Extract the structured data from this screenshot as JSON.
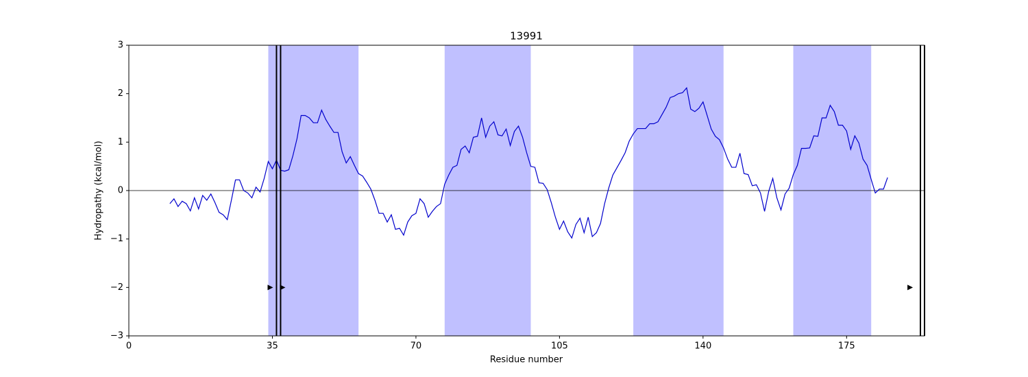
{
  "chart_data": {
    "type": "line",
    "title": "13991",
    "x_label": "Residue number",
    "y_label": "Hydropathy (kcal/mol)",
    "color": "#0000cc",
    "span_color": "#c0c0ff",
    "x": [
      10,
      11,
      12,
      13,
      14,
      15,
      16,
      17,
      18,
      19,
      20,
      21,
      22,
      23,
      24,
      25,
      26,
      27,
      28,
      29,
      30,
      31,
      32,
      33,
      34,
      35,
      36,
      37,
      38,
      39,
      40,
      41,
      42,
      43,
      44,
      45,
      46,
      47,
      48,
      49,
      50,
      51,
      52,
      53,
      54,
      55,
      56,
      57,
      58,
      59,
      60,
      61,
      62,
      63,
      64,
      65,
      66,
      67,
      68,
      69,
      70,
      71,
      72,
      73,
      74,
      75,
      76,
      77,
      78,
      79,
      80,
      81,
      82,
      83,
      84,
      85,
      86,
      87,
      88,
      89,
      90,
      91,
      92,
      93,
      94,
      95,
      96,
      97,
      98,
      99,
      100,
      101,
      102,
      103,
      104,
      105,
      106,
      107,
      108,
      109,
      110,
      111,
      112,
      113,
      114,
      115,
      116,
      117,
      118,
      119,
      120,
      121,
      122,
      123,
      124,
      125,
      126,
      127,
      128,
      129,
      130,
      131,
      132,
      133,
      134,
      135,
      136,
      137,
      138,
      139,
      140,
      141,
      142,
      143,
      144,
      145,
      146,
      147,
      148,
      149,
      150,
      151,
      152,
      153,
      154,
      155,
      156,
      157,
      158,
      159,
      160,
      161,
      162,
      163,
      164,
      165,
      166,
      167,
      168,
      169,
      170,
      171,
      172,
      173,
      174,
      175,
      176,
      177,
      178,
      179,
      180,
      181,
      182,
      183,
      184,
      185
    ],
    "values": [
      -0.27,
      -0.17,
      -0.33,
      -0.22,
      -0.27,
      -0.42,
      -0.15,
      -0.38,
      -0.1,
      -0.2,
      -0.07,
      -0.25,
      -0.45,
      -0.5,
      -0.6,
      -0.2,
      0.22,
      0.22,
      0.0,
      -0.05,
      -0.15,
      0.07,
      -0.03,
      0.25,
      0.6,
      0.45,
      0.63,
      0.42,
      0.4,
      0.43,
      0.72,
      1.07,
      1.55,
      1.55,
      1.5,
      1.4,
      1.4,
      1.66,
      1.47,
      1.33,
      1.2,
      1.2,
      0.8,
      0.57,
      0.7,
      0.52,
      0.35,
      0.3,
      0.17,
      0.03,
      -0.2,
      -0.47,
      -0.47,
      -0.65,
      -0.5,
      -0.8,
      -0.78,
      -0.92,
      -0.65,
      -0.52,
      -0.47,
      -0.17,
      -0.27,
      -0.55,
      -0.43,
      -0.33,
      -0.27,
      0.13,
      0.32,
      0.48,
      0.52,
      0.85,
      0.92,
      0.78,
      1.1,
      1.12,
      1.5,
      1.1,
      1.33,
      1.42,
      1.15,
      1.13,
      1.27,
      0.93,
      1.22,
      1.33,
      1.1,
      0.78,
      0.5,
      0.48,
      0.16,
      0.15,
      0.02,
      -0.25,
      -0.55,
      -0.8,
      -0.63,
      -0.85,
      -0.98,
      -0.7,
      -0.57,
      -0.87,
      -0.55,
      -0.95,
      -0.87,
      -0.68,
      -0.27,
      0.05,
      0.32,
      0.47,
      0.62,
      0.78,
      1.02,
      1.17,
      1.28,
      1.28,
      1.28,
      1.38,
      1.38,
      1.42,
      1.57,
      1.72,
      1.92,
      1.95,
      2.0,
      2.02,
      2.12,
      1.68,
      1.63,
      1.7,
      1.83,
      1.55,
      1.27,
      1.12,
      1.05,
      0.88,
      0.65,
      0.48,
      0.48,
      0.77,
      0.35,
      0.33,
      0.1,
      0.12,
      -0.05,
      -0.43,
      -0.02,
      0.25,
      -0.15,
      -0.4,
      -0.07,
      0.05,
      0.33,
      0.52,
      0.87,
      0.87,
      0.88,
      1.13,
      1.12,
      1.5,
      1.5,
      1.76,
      1.63,
      1.35,
      1.35,
      1.23,
      0.85,
      1.13,
      0.98,
      0.65,
      0.52,
      0.23,
      -0.05,
      0.03,
      0.03,
      0.27
    ],
    "spans": [
      [
        34,
        56
      ],
      [
        77,
        98
      ],
      [
        123,
        145
      ],
      [
        162,
        181
      ]
    ],
    "hline": 0,
    "vlines": [
      36,
      37,
      193,
      194
    ],
    "markers": [
      {
        "x": 34.5,
        "y": -2
      },
      {
        "x": 37.5,
        "y": -2
      },
      {
        "x": 190.5,
        "y": -2
      }
    ],
    "xlim": [
      0,
      194
    ],
    "ylim": [
      -3,
      3
    ],
    "xticks": [
      0,
      35,
      70,
      105,
      140,
      175
    ],
    "yticks": [
      {
        "value": -3,
        "label": "−3"
      },
      {
        "value": -2,
        "label": "−2"
      },
      {
        "value": -1,
        "label": "−1"
      },
      0,
      1,
      2,
      3
    ]
  }
}
